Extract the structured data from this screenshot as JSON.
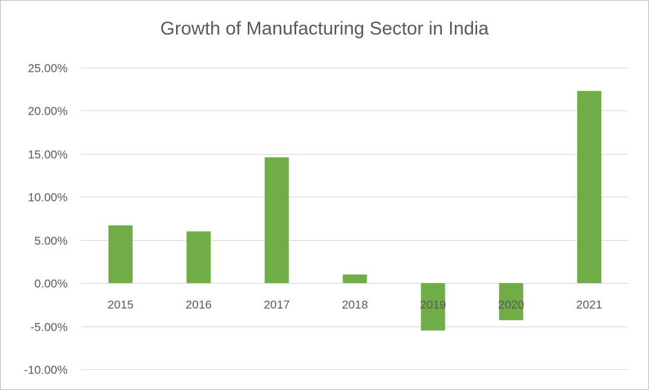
{
  "chart_data": {
    "type": "bar",
    "title": "Growth of Manufacturing Sector in India",
    "xlabel": "",
    "ylabel": "",
    "categories": [
      "2015",
      "2016",
      "2017",
      "2018",
      "2019",
      "2020",
      "2021"
    ],
    "values": [
      6.7,
      6.0,
      14.6,
      1.0,
      -5.5,
      -4.3,
      22.3
    ],
    "ylim": [
      -10,
      25
    ],
    "ytick_values": [
      25,
      20,
      15,
      10,
      5,
      0,
      -5,
      -10
    ],
    "ytick_labels": [
      "25.00%",
      "20.00%",
      "15.00%",
      "10.00%",
      "5.00%",
      "0.00%",
      "-5.00%",
      "-10.00%"
    ],
    "grid": true,
    "legend": "none",
    "bar_color": "#70ad47",
    "grid_color": "#d9d9d9",
    "text_color": "#595959"
  }
}
